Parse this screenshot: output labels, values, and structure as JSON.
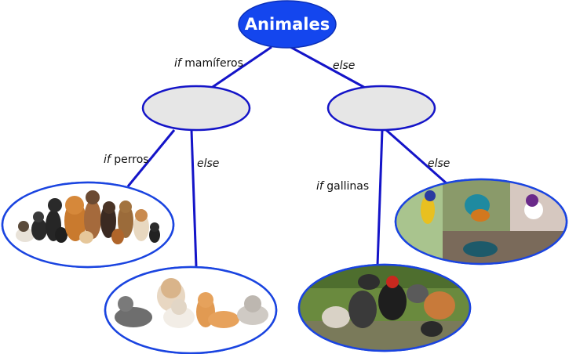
{
  "root": {
    "label": "Animales"
  },
  "edges": {
    "mamiferos": {
      "keyword": "if",
      "text": " mamíferos"
    },
    "else_root": {
      "keyword": "else"
    },
    "perros": {
      "keyword": "if",
      "text": " perros"
    },
    "else_left": {
      "keyword": "else"
    },
    "gallinas": {
      "keyword": "if",
      "text": " gallinas"
    },
    "else_right": {
      "keyword": "else"
    }
  },
  "colors": {
    "edge": "#1414c8",
    "root_fill": "#1446ee",
    "inner_fill": "#e6e6e6",
    "leaf_border": "#1a44e0"
  },
  "leaves": [
    {
      "name": "leaf-dogs",
      "icon": "dog-group-image"
    },
    {
      "name": "leaf-cats",
      "icon": "cat-group-image"
    },
    {
      "name": "leaf-chickens",
      "icon": "chicken-group-image"
    },
    {
      "name": "leaf-birds",
      "icon": "bird-group-image"
    }
  ]
}
